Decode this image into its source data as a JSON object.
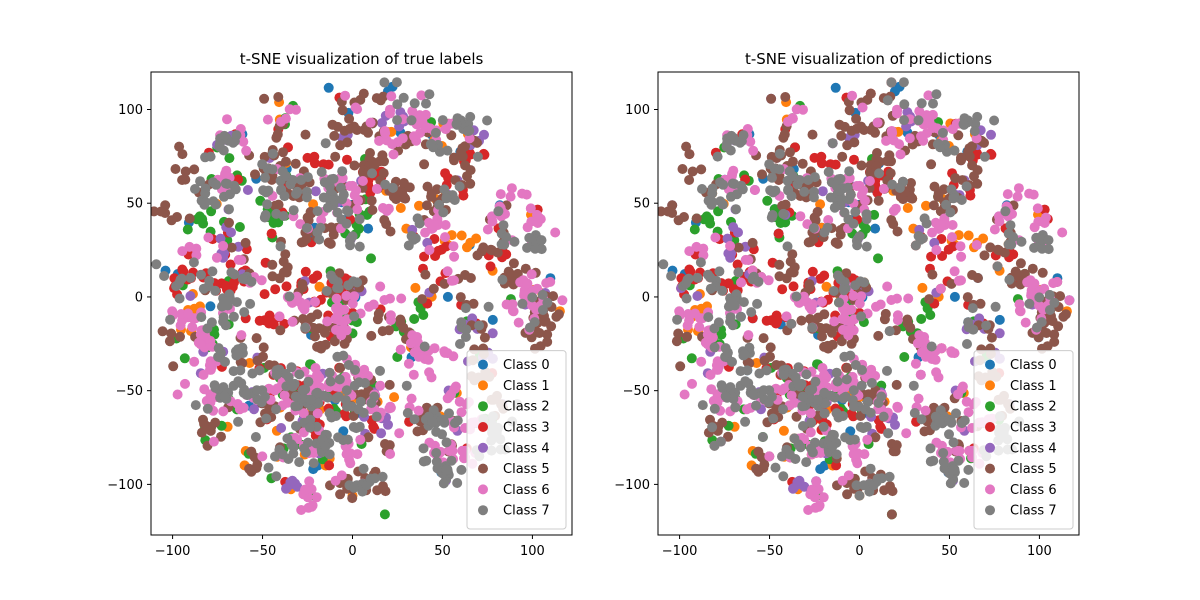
{
  "colors": [
    "#1f77b4",
    "#ff7f0e",
    "#2ca02c",
    "#d62728",
    "#9467bd",
    "#8c564b",
    "#e377c2",
    "#7f7f7f"
  ],
  "chart_data": [
    {
      "type": "scatter",
      "title": "t-SNE visualization of true labels",
      "xlabel": "",
      "ylabel": "",
      "xlim": [
        -112,
        122
      ],
      "ylim": [
        -127,
        120
      ],
      "xticks": [
        -100,
        -50,
        0,
        50,
        100
      ],
      "yticks": [
        -100,
        -50,
        0,
        50,
        100
      ],
      "grid": false,
      "legend_position": "lower-right",
      "series": [
        {
          "name": "Class 0",
          "color": "#1f77b4"
        },
        {
          "name": "Class 1",
          "color": "#ff7f0e"
        },
        {
          "name": "Class 2",
          "color": "#2ca02c"
        },
        {
          "name": "Class 3",
          "color": "#d62728"
        },
        {
          "name": "Class 4",
          "color": "#9467bd"
        },
        {
          "name": "Class 5",
          "color": "#8c564b"
        },
        {
          "name": "Class 6",
          "color": "#e377c2"
        },
        {
          "name": "Class 7",
          "color": "#7f7f7f"
        }
      ]
    },
    {
      "type": "scatter",
      "title": "t-SNE visualization of predictions",
      "xlabel": "",
      "ylabel": "",
      "xlim": [
        -112,
        122
      ],
      "ylim": [
        -127,
        120
      ],
      "xticks": [
        -100,
        -50,
        0,
        50,
        100
      ],
      "yticks": [
        -100,
        -50,
        0,
        50,
        100
      ],
      "grid": false,
      "legend_position": "lower-right",
      "series": [
        {
          "name": "Class 0",
          "color": "#1f77b4"
        },
        {
          "name": "Class 1",
          "color": "#ff7f0e"
        },
        {
          "name": "Class 2",
          "color": "#2ca02c"
        },
        {
          "name": "Class 3",
          "color": "#d62728"
        },
        {
          "name": "Class 4",
          "color": "#9467bd"
        },
        {
          "name": "Class 5",
          "color": "#8c564b"
        },
        {
          "name": "Class 6",
          "color": "#e377c2"
        },
        {
          "name": "Class 7",
          "color": "#7f7f7f"
        }
      ]
    }
  ]
}
